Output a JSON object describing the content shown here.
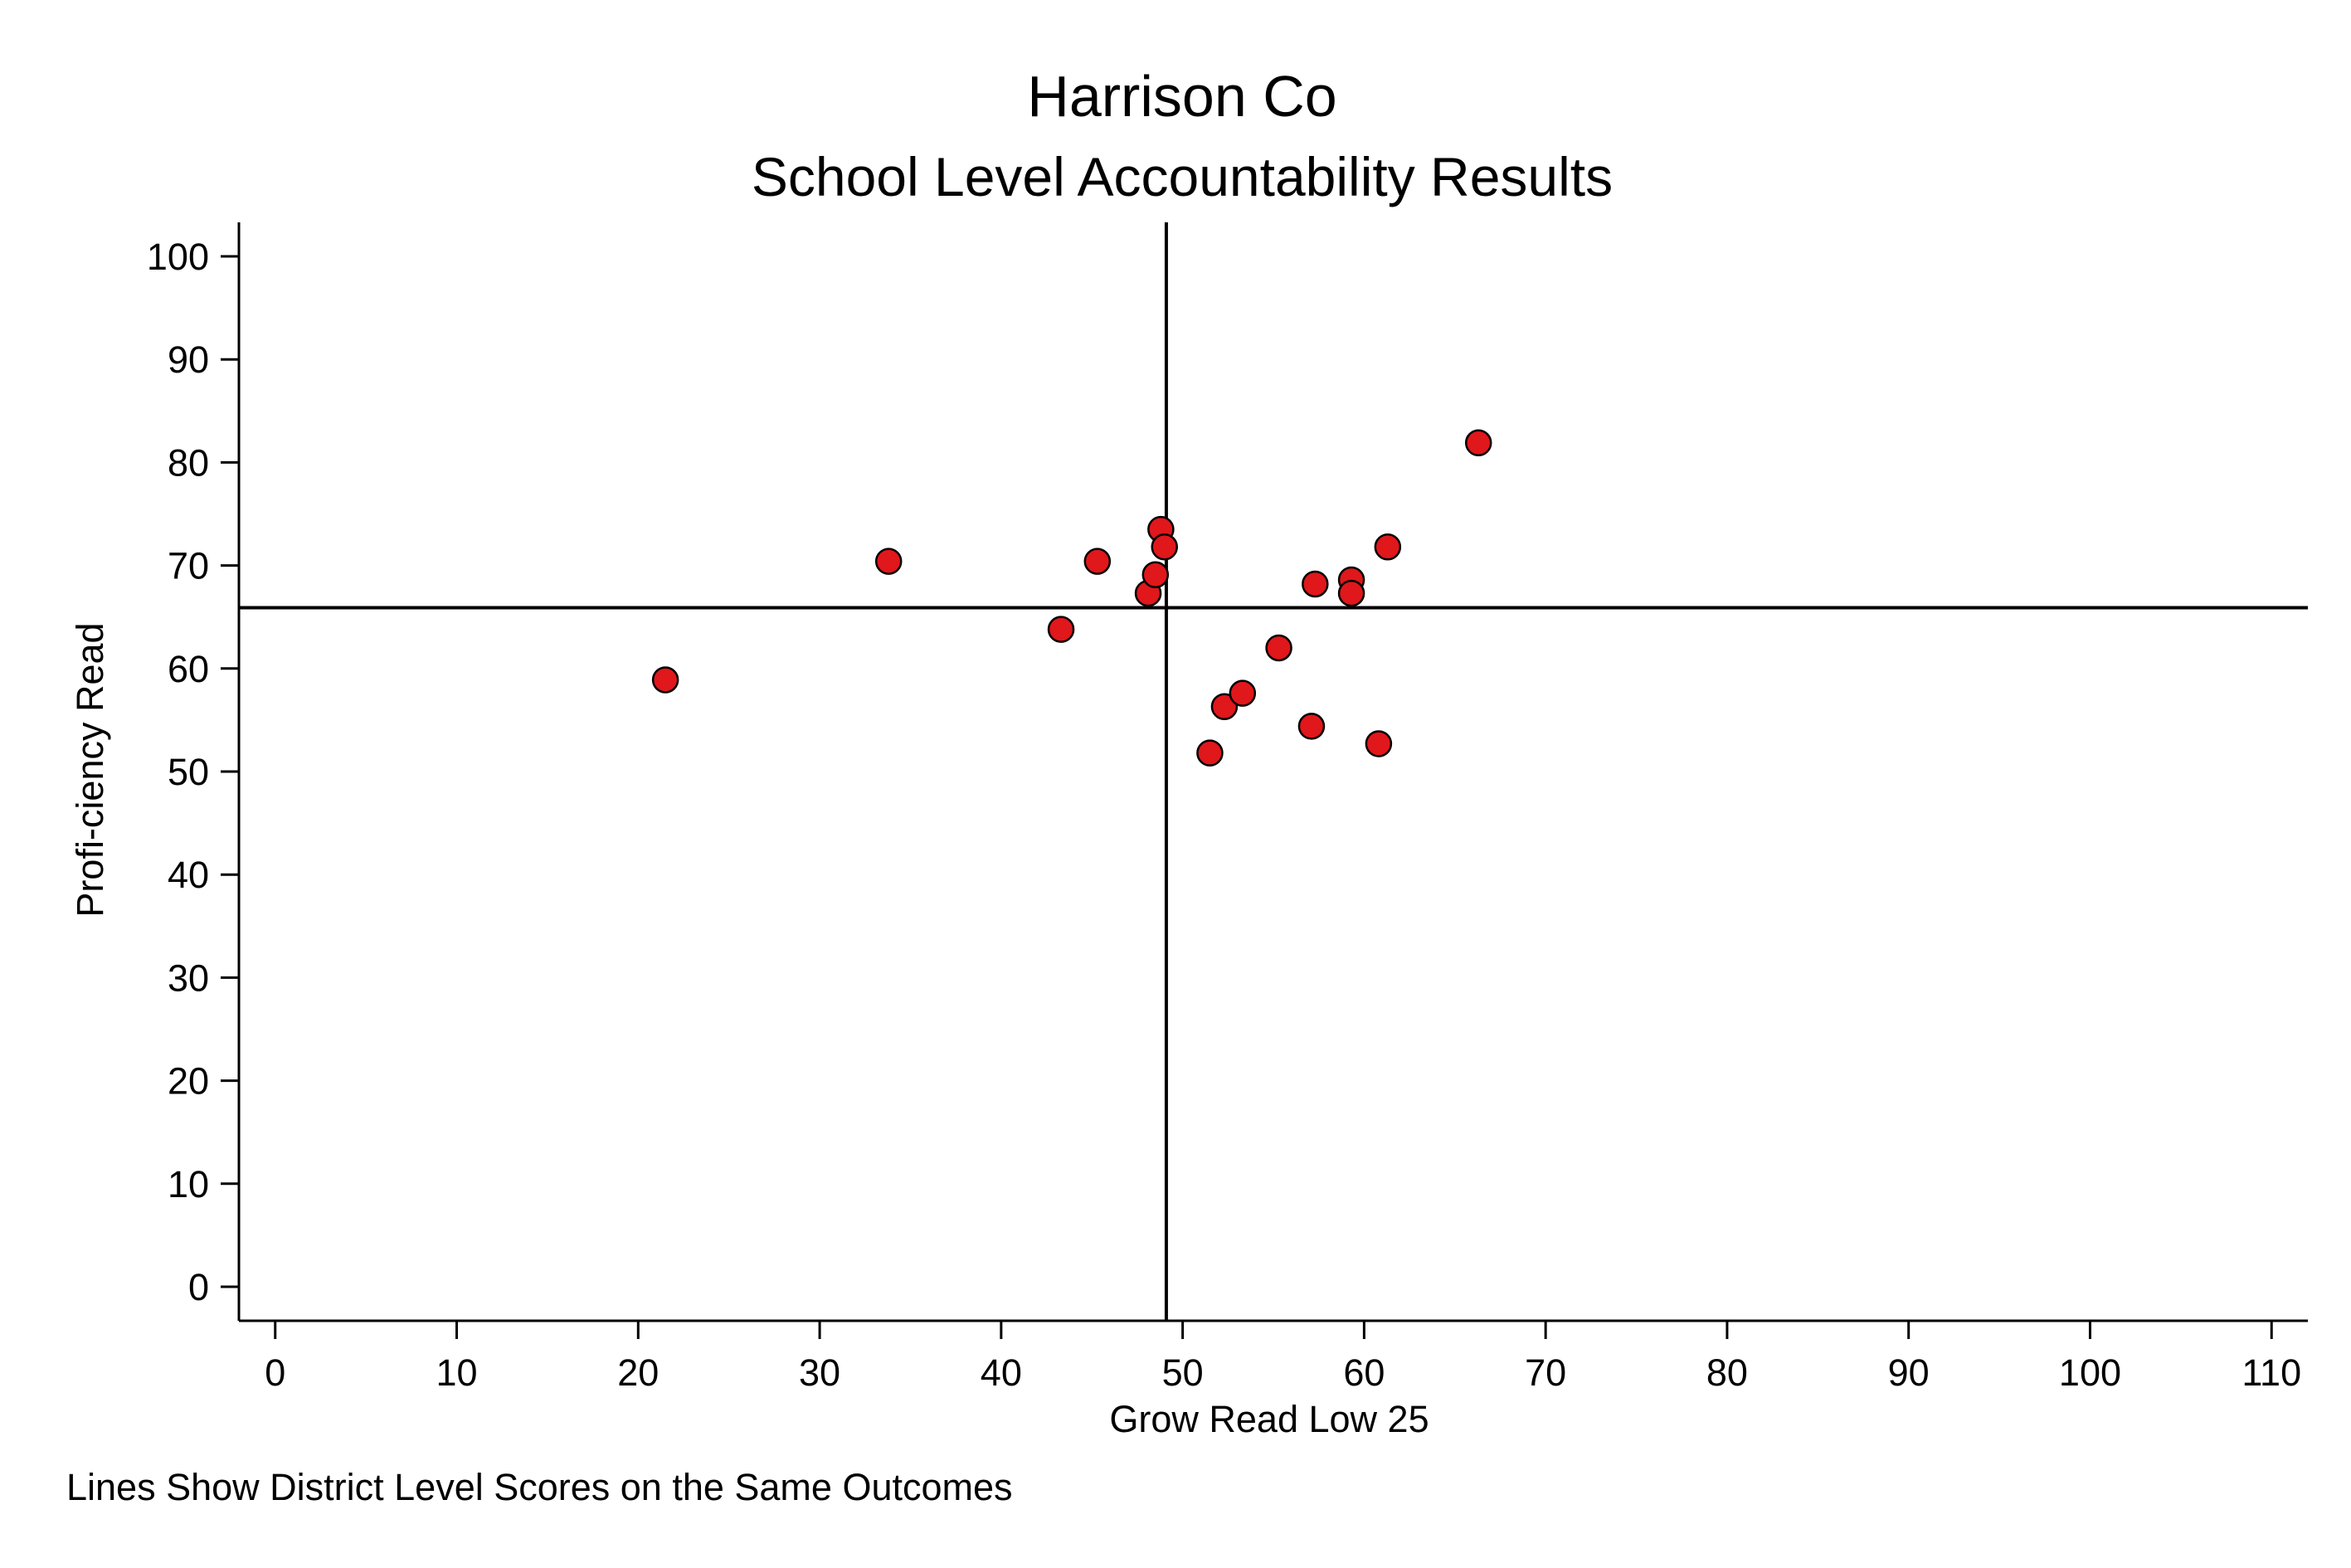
{
  "chart_data": {
    "type": "scatter",
    "title": "Harrison Co",
    "subtitle": "School Level Accountability Results",
    "xlabel": "Grow Read Low 25",
    "ylabel": "Profi-ciency Read",
    "note": "Lines Show District Level Scores on the Same Outcomes",
    "xlim": [
      -2,
      112
    ],
    "ylim": [
      -3.3,
      103.3
    ],
    "xticks": [
      0,
      10,
      20,
      30,
      40,
      50,
      60,
      70,
      80,
      90,
      100,
      110
    ],
    "yticks": [
      0,
      10,
      20,
      30,
      40,
      50,
      60,
      70,
      80,
      90,
      100
    ],
    "reference_lines": {
      "x": 49.1,
      "y": 65.9
    },
    "grid": false,
    "marker_color": "#e0171b",
    "marker_edge_color": "#000000",
    "points": [
      {
        "x": 21.5,
        "y": 58.9
      },
      {
        "x": 33.8,
        "y": 70.4
      },
      {
        "x": 43.3,
        "y": 63.8
      },
      {
        "x": 45.3,
        "y": 70.4
      },
      {
        "x": 48.1,
        "y": 67.3
      },
      {
        "x": 48.5,
        "y": 69.1
      },
      {
        "x": 48.8,
        "y": 73.5
      },
      {
        "x": 49.0,
        "y": 71.8
      },
      {
        "x": 51.5,
        "y": 51.8
      },
      {
        "x": 52.3,
        "y": 56.3
      },
      {
        "x": 53.3,
        "y": 57.6
      },
      {
        "x": 55.3,
        "y": 62.0
      },
      {
        "x": 57.1,
        "y": 54.4
      },
      {
        "x": 57.3,
        "y": 68.2
      },
      {
        "x": 59.3,
        "y": 68.6
      },
      {
        "x": 59.3,
        "y": 67.3
      },
      {
        "x": 60.8,
        "y": 52.7
      },
      {
        "x": 61.3,
        "y": 71.8
      },
      {
        "x": 66.3,
        "y": 81.9
      }
    ]
  }
}
